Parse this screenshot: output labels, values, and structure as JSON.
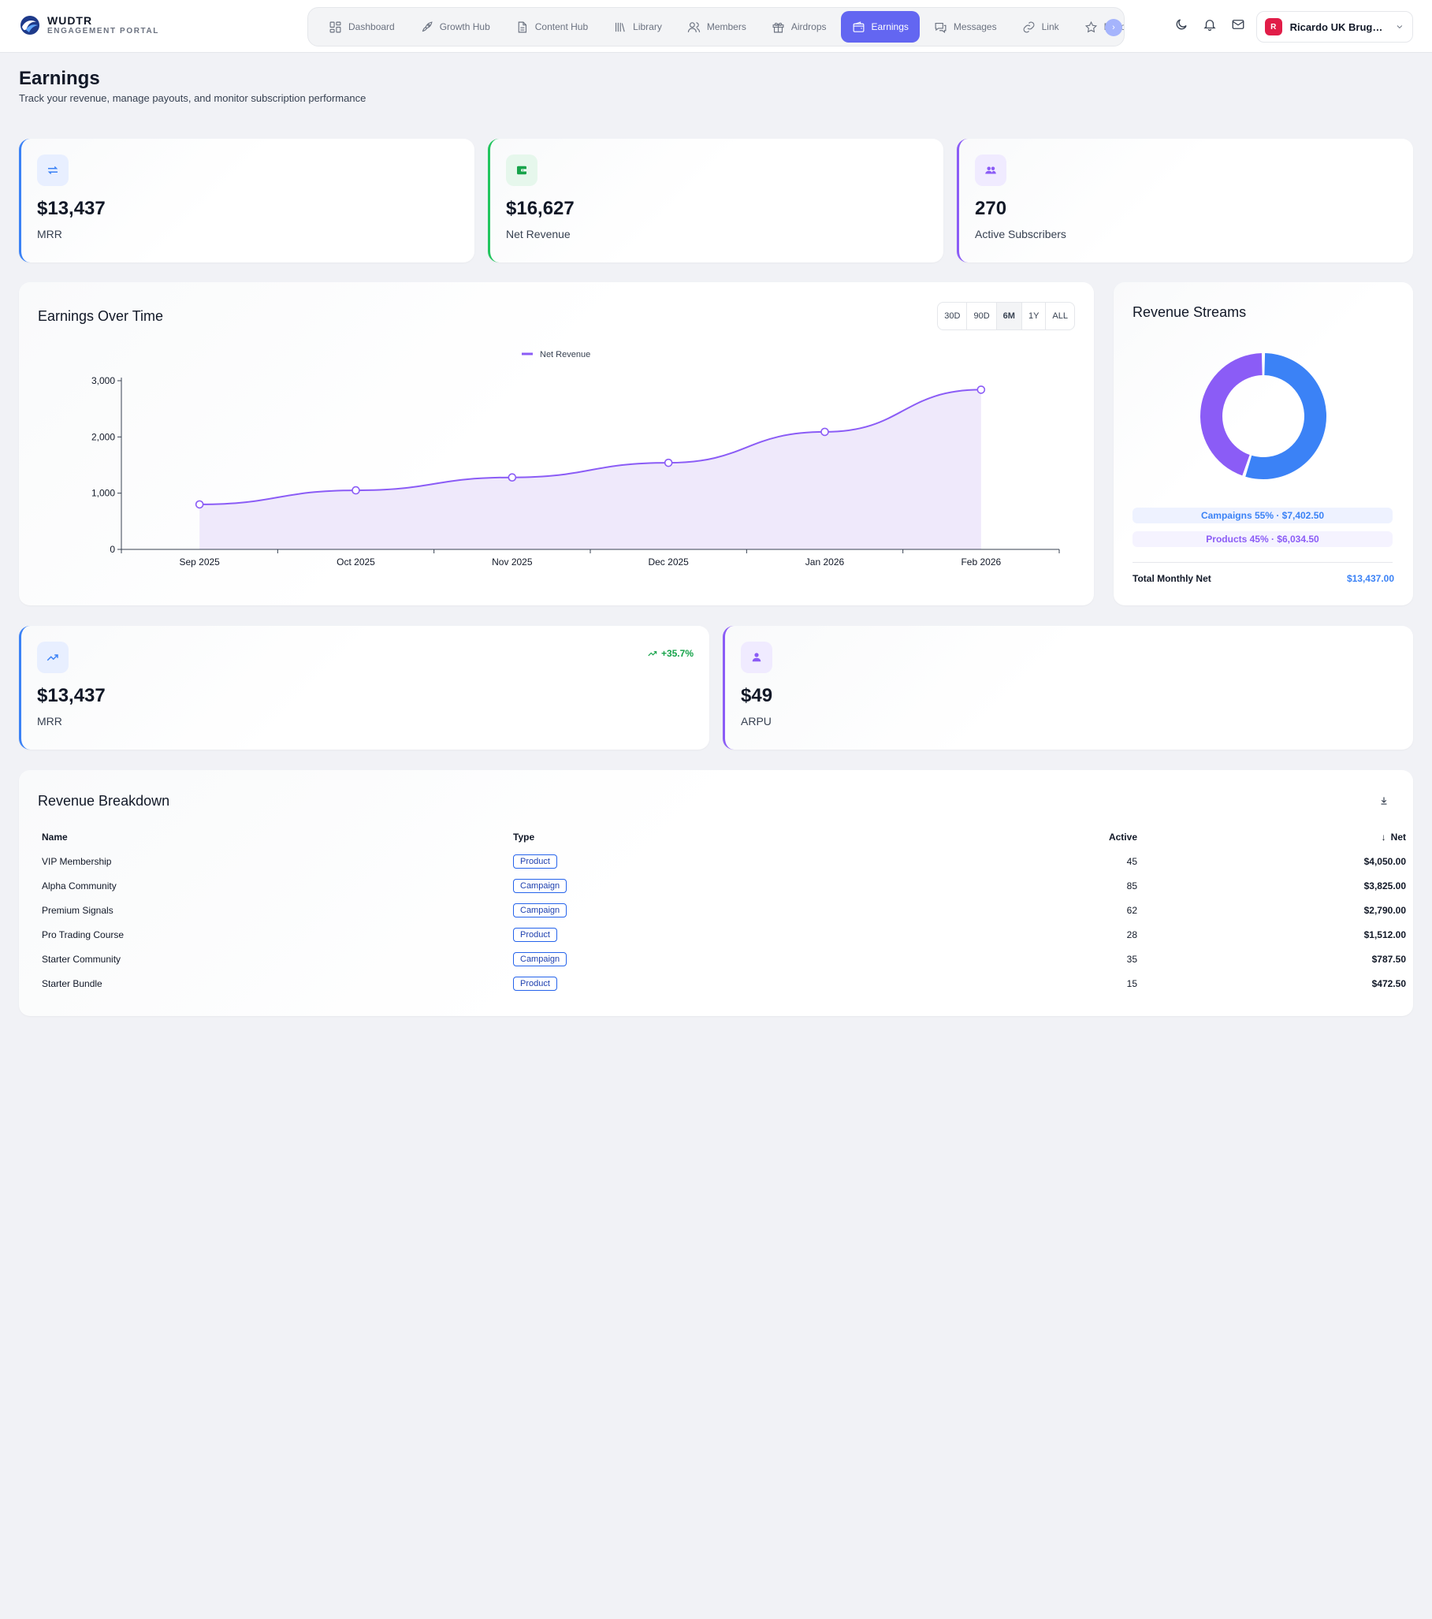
{
  "brand": {
    "name": "WUDTR",
    "subtitle": "ENGAGEMENT PORTAL"
  },
  "nav": {
    "items": [
      {
        "label": "Dashboard",
        "icon": "grid-icon",
        "active": false
      },
      {
        "label": "Growth Hub",
        "icon": "rocket-icon",
        "active": false
      },
      {
        "label": "Content Hub",
        "icon": "document-icon",
        "active": false
      },
      {
        "label": "Library",
        "icon": "library-icon",
        "active": false
      },
      {
        "label": "Members",
        "icon": "users-icon",
        "active": false
      },
      {
        "label": "Airdrops",
        "icon": "gift-icon",
        "active": false
      },
      {
        "label": "Earnings",
        "icon": "wallet-icon",
        "active": true
      },
      {
        "label": "Messages",
        "icon": "chat-icon",
        "active": false
      },
      {
        "label": "Link",
        "icon": "link-icon",
        "active": false
      },
      {
        "label": "Recommendations",
        "icon": "star-icon",
        "active": false
      }
    ]
  },
  "user": {
    "initial": "R",
    "name": "Ricardo UK Brugge..."
  },
  "page": {
    "title": "Earnings",
    "subtitle": "Track your revenue, manage payouts, and monitor subscription performance"
  },
  "stats_top": [
    {
      "value": "$13,437",
      "label": "MRR",
      "icon": "repeat-icon",
      "accent": "#3b82f6"
    },
    {
      "value": "$16,627",
      "label": "Net Revenue",
      "icon": "wallet-icon",
      "accent": "#22c55e"
    },
    {
      "value": "270",
      "label": "Active Subscribers",
      "icon": "users-icon",
      "accent": "#8b5cf6"
    }
  ],
  "earnings_chart": {
    "title": "Earnings Over Time",
    "ranges": [
      "30D",
      "90D",
      "6M",
      "1Y",
      "ALL"
    ],
    "active_range": "6M"
  },
  "chart_data": {
    "type": "area",
    "categories": [
      "Sep 2025",
      "Oct 2025",
      "Nov 2025",
      "Dec 2025",
      "Jan 2026",
      "Feb 2026"
    ],
    "series": [
      {
        "name": "Net Revenue",
        "values": [
          800,
          1050,
          1280,
          1540,
          2090,
          2840
        ],
        "color": "#8b5cf6"
      }
    ],
    "y_ticks": [
      "0",
      "1,000",
      "2,000",
      "3,000"
    ],
    "ylim": [
      0,
      3000
    ],
    "legend": "top-center",
    "grid": false
  },
  "revenue_streams": {
    "title": "Revenue Streams",
    "slices": [
      {
        "name": "Campaigns",
        "percent": 55,
        "amount": "$7,402.50",
        "text": "Campaigns 55% · $7,402.50",
        "color": "#3b82f6"
      },
      {
        "name": "Products",
        "percent": 45,
        "amount": "$6,034.50",
        "text": "Products 45% · $6,034.50",
        "color": "#8b5cf6"
      }
    ],
    "total_label": "Total Monthly Net",
    "total_value": "$13,437.00"
  },
  "stats_bottom": [
    {
      "value": "$13,437",
      "label": "MRR",
      "icon": "trending-up-icon",
      "trend": "+35.7%",
      "accent": "#3b82f6"
    },
    {
      "value": "$49",
      "label": "ARPU",
      "icon": "user-icon",
      "accent": "#8b5cf6"
    }
  ],
  "breakdown": {
    "title": "Revenue Breakdown",
    "columns": {
      "name": "Name",
      "type": "Type",
      "active": "Active",
      "net": "Net"
    },
    "rows": [
      {
        "name": "VIP Membership",
        "type": "Product",
        "active": "45",
        "net": "$4,050.00"
      },
      {
        "name": "Alpha Community",
        "type": "Campaign",
        "active": "85",
        "net": "$3,825.00"
      },
      {
        "name": "Premium Signals",
        "type": "Campaign",
        "active": "62",
        "net": "$2,790.00"
      },
      {
        "name": "Pro Trading Course",
        "type": "Product",
        "active": "28",
        "net": "$1,512.00"
      },
      {
        "name": "Starter Community",
        "type": "Campaign",
        "active": "35",
        "net": "$787.50"
      },
      {
        "name": "Starter Bundle",
        "type": "Product",
        "active": "15",
        "net": "$472.50"
      }
    ]
  }
}
